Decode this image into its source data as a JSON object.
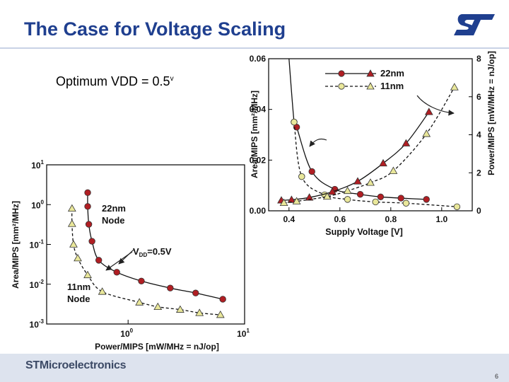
{
  "slide": {
    "title": "The Case for Voltage Scaling",
    "subtitle_main": "Optimum VDD = 0.5",
    "subtitle_sup": "v",
    "footer_brand": "STMicroelectronics",
    "page_number": "6"
  },
  "colors": {
    "title": "#1f3f8f",
    "series_22nm": "#b01e23",
    "series_11nm": "#e9e79a",
    "logo": "#1f3f8f"
  },
  "chart_data": [
    {
      "type": "line",
      "xlabel": "Supply Voltage [V]",
      "ylabel_left": "Area/MIPS [mm²/MHz]",
      "ylabel_right": "Power/MIPS [mW/MHz = nJ/op]",
      "xlim": [
        0.32,
        1.12
      ],
      "ylim_left": [
        0,
        0.06
      ],
      "ylim_right": [
        0,
        8
      ],
      "x_ticks": [
        "0.4",
        "0.6",
        "0.8",
        "1.0"
      ],
      "y_left_ticks": [
        "0.00",
        "0.02",
        "0.04",
        "0.06"
      ],
      "y_right_ticks": [
        "0",
        "2",
        "4",
        "6",
        "8"
      ],
      "legend": [
        "22nm",
        "11nm"
      ],
      "legend_position": "top-right",
      "series": [
        {
          "name": "22nm",
          "axis": "left",
          "marker": "circle",
          "dashed": false,
          "x": [
            0.42,
            0.43,
            0.49,
            0.58,
            0.68,
            0.76,
            0.84,
            0.94
          ],
          "y": [
            0.035,
            0.033,
            0.0155,
            0.0085,
            0.0065,
            0.0055,
            0.005,
            0.0045
          ],
          "curve_top_x": 0.4
        },
        {
          "name": "11nm",
          "axis": "left",
          "marker": "circle",
          "dashed": true,
          "x": [
            0.42,
            0.45,
            0.54,
            0.63,
            0.74,
            0.86,
            1.06
          ],
          "y": [
            0.035,
            0.0135,
            0.0063,
            0.0045,
            0.0035,
            0.003,
            0.0016
          ]
        },
        {
          "name": "22nm",
          "axis": "right",
          "marker": "triangle",
          "dashed": false,
          "x": [
            0.37,
            0.41,
            0.48,
            0.57,
            0.67,
            0.77,
            0.86,
            0.95
          ],
          "y": [
            0.55,
            0.58,
            0.7,
            1.0,
            1.55,
            2.5,
            3.55,
            5.2
          ]
        },
        {
          "name": "11nm",
          "axis": "right",
          "marker": "triangle",
          "dashed": true,
          "x": [
            0.38,
            0.43,
            0.55,
            0.63,
            0.72,
            0.81,
            0.94,
            1.05
          ],
          "y": [
            0.42,
            0.5,
            0.75,
            1.05,
            1.48,
            2.1,
            4.05,
            6.5
          ]
        }
      ]
    },
    {
      "type": "line",
      "xlabel": "Power/MIPS [mW/MHz = nJ/op]",
      "ylabel": "Area/MIPS [mm²/MHz]",
      "log_x": true,
      "log_y": true,
      "xlim": [
        0.2,
        10
      ],
      "ylim": [
        0.001,
        10
      ],
      "x_ticks": [
        {
          "base": "10",
          "exp": "0"
        },
        {
          "base": "10",
          "exp": "1"
        }
      ],
      "y_ticks": [
        {
          "base": "10",
          "exp": "1"
        },
        {
          "base": "10",
          "exp": "0"
        },
        {
          "base": "10",
          "exp": "-1"
        },
        {
          "base": "10",
          "exp": "-2"
        },
        {
          "base": "10",
          "exp": "-3"
        }
      ],
      "annotations": {
        "node_22": [
          "22nm",
          "Node"
        ],
        "node_11": [
          "11nm",
          "Node"
        ],
        "vdd_prefix": "V",
        "vdd_sub": "DD",
        "vdd_suffix": "=0.5V"
      },
      "series": [
        {
          "name": "22nm Node",
          "marker": "circle",
          "dashed": false,
          "x": [
            0.45,
            0.45,
            0.46,
            0.49,
            0.56,
            0.8,
            1.3,
            2.3,
            3.8,
            6.5
          ],
          "y": [
            2.0,
            0.9,
            0.32,
            0.12,
            0.04,
            0.02,
            0.012,
            0.008,
            0.006,
            0.0042
          ]
        },
        {
          "name": "11nm Node",
          "marker": "triangle",
          "dashed": true,
          "x": [
            0.33,
            0.33,
            0.34,
            0.37,
            0.45,
            0.6,
            1.25,
            1.8,
            2.8,
            4.1,
            6.2
          ],
          "y": [
            0.8,
            0.33,
            0.1,
            0.045,
            0.017,
            0.0065,
            0.0035,
            0.0027,
            0.0023,
            0.0019,
            0.0017
          ]
        }
      ]
    }
  ]
}
